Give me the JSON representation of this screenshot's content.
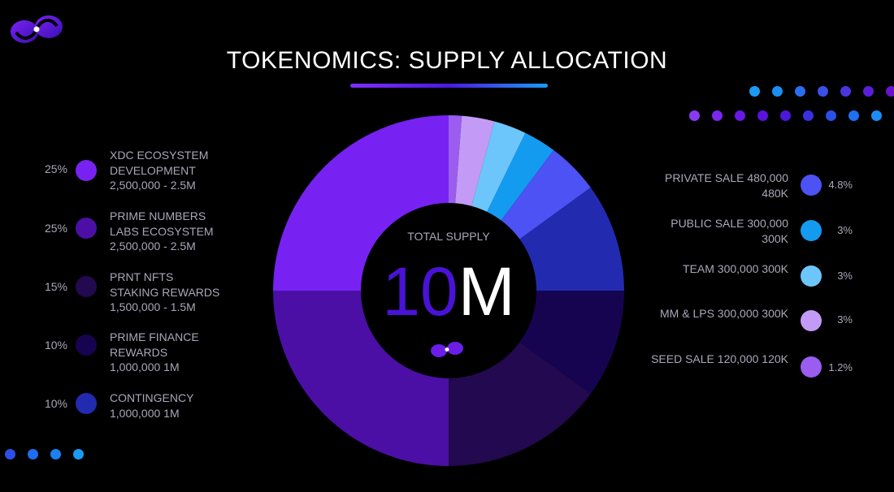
{
  "title": "TOKENOMICS: SUPPLY ALLOCATION",
  "center": {
    "label": "TOTAL SUPPLY",
    "value_part1": "10",
    "value_part2": "M"
  },
  "colors": {
    "accent_purple": "#7b22f5",
    "accent_blue": "#1a9cf5",
    "center_10": "#4a12d6",
    "center_M": "#ffffff"
  },
  "chart_data": {
    "type": "pie",
    "title": "TOKENOMICS: SUPPLY ALLOCATION",
    "total_supply": "10M",
    "slices": [
      {
        "name": "SEED SALE",
        "value": 1.2,
        "color": "#9b5cf0"
      },
      {
        "name": "MM & LPS",
        "value": 3,
        "color": "#c39bf6"
      },
      {
        "name": "TEAM",
        "value": 3,
        "color": "#6dc6fb"
      },
      {
        "name": "PUBLIC SALE",
        "value": 3,
        "color": "#139bf0"
      },
      {
        "name": "PRIVATE SALE",
        "value": 4.8,
        "color": "#4d52f5"
      },
      {
        "name": "CONTINGENCY",
        "value": 10,
        "color": "#222ab0"
      },
      {
        "name": "PRIME FINANCE REWARDS",
        "value": 10,
        "color": "#170450"
      },
      {
        "name": "PRNT NFTS STAKING REWARDS",
        "value": 15,
        "color": "#23094f"
      },
      {
        "name": "PRIME NUMBERS LABS ECOSYSTEM",
        "value": 25,
        "color": "#4b0fa6"
      },
      {
        "name": "XDC ECOSYSTEM DEVELOPMENT",
        "value": 25,
        "color": "#7722f2"
      }
    ]
  },
  "legend_left": [
    {
      "pct": "25%",
      "line1": "XDC ECOSYSTEM",
      "line2": "DEVELOPMENT",
      "amount": "2,500,000 - 2.5M",
      "color": "#7722f2"
    },
    {
      "pct": "25%",
      "line1": "PRIME NUMBERS",
      "line2": "LABS ECOSYSTEM",
      "amount": "2,500,000 - 2.5M",
      "color": "#4b0fa6"
    },
    {
      "pct": "15%",
      "line1": "PRNT NFTS",
      "line2": "STAKING REWARDS",
      "amount": "1,500,000 - 1.5M",
      "color": "#23094f"
    },
    {
      "pct": "10%",
      "line1": "PRIME FINANCE",
      "line2": "REWARDS",
      "amount": "1,000,000 1M",
      "color": "#170450"
    },
    {
      "pct": "10%",
      "line1": "CONTINGENCY",
      "line2": "",
      "amount": "1,000,000 1M",
      "color": "#222ab0"
    }
  ],
  "legend_right": [
    {
      "label": "PRIVATE SALE",
      "amount": "480,000 480K",
      "pct": "4.8%",
      "color": "#4d52f5"
    },
    {
      "label": "PUBLIC SALE",
      "amount": "300,000 300K",
      "pct": "3%",
      "color": "#139bf0"
    },
    {
      "label": "TEAM",
      "amount": "300,000 300K",
      "pct": "3%",
      "color": "#6dc6fb"
    },
    {
      "label": "MM & LPS",
      "amount": "300,000 300K",
      "pct": "3%",
      "color": "#c39bf6"
    },
    {
      "label": "SEED SALE",
      "amount": "120,000 120K",
      "pct": "1.2%",
      "color": "#9b5cf0"
    }
  ]
}
